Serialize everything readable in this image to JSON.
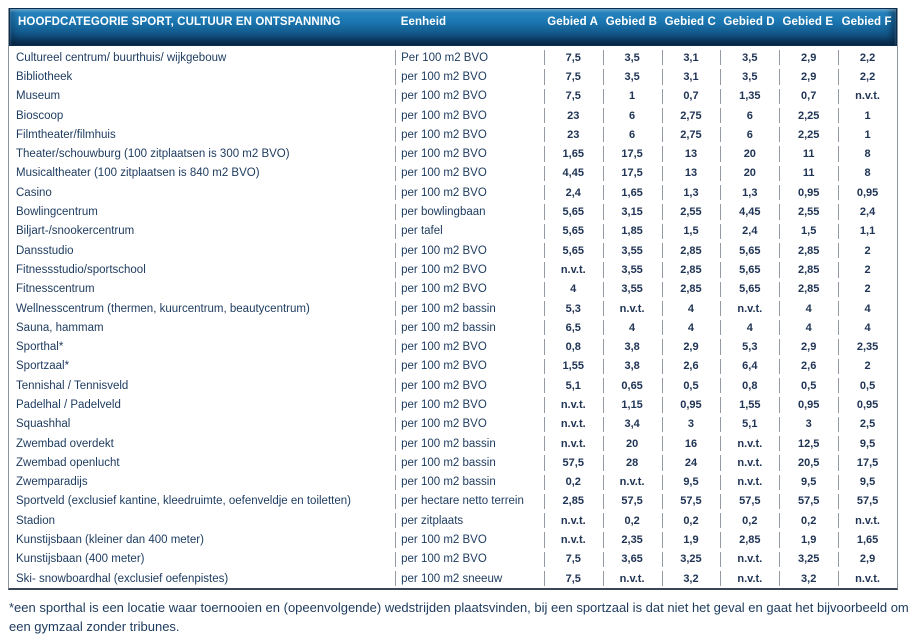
{
  "table": {
    "header": {
      "category": "HOOFDCATEGORIE SPORT, CULTUUR EN ONTSPANNING",
      "unit": "Eenheid",
      "areas": [
        "Gebied A",
        "Gebied B",
        "Gebied C",
        "Gebied D",
        "Gebied E",
        "Gebied F"
      ]
    },
    "rows": [
      {
        "label": "Cultureel centrum/ buurthuis/ wijkgebouw",
        "unit": "Per 100 m2 BVO",
        "values": [
          "7,5",
          "3,5",
          "3,1",
          "3,5",
          "2,9",
          "2,2"
        ]
      },
      {
        "label": "Bibliotheek",
        "unit": "per 100 m2 BVO",
        "values": [
          "7,5",
          "3,5",
          "3,1",
          "3,5",
          "2,9",
          "2,2"
        ]
      },
      {
        "label": "Museum",
        "unit": "per 100 m2 BVO",
        "values": [
          "7,5",
          "1",
          "0,7",
          "1,35",
          "0,7",
          "n.v.t."
        ]
      },
      {
        "label": "Bioscoop",
        "unit": "per 100 m2 BVO",
        "values": [
          "23",
          "6",
          "2,75",
          "6",
          "2,25",
          "1"
        ]
      },
      {
        "label": "Filmtheater/filmhuis",
        "unit": "per 100 m2 BVO",
        "values": [
          "23",
          "6",
          "2,75",
          "6",
          "2,25",
          "1"
        ]
      },
      {
        "label": "Theater/schouwburg (100 zitplaatsen is 300 m2 BVO)",
        "unit": "per 100 m2 BVO",
        "values": [
          "1,65",
          "17,5",
          "13",
          "20",
          "11",
          "8"
        ]
      },
      {
        "label": "Musicaltheater (100 zitplaatsen is 840 m2 BVO)",
        "unit": "per 100 m2 BVO",
        "values": [
          "4,45",
          "17,5",
          "13",
          "20",
          "11",
          "8"
        ]
      },
      {
        "label": "Casino",
        "unit": "per 100 m2 BVO",
        "values": [
          "2,4",
          "1,65",
          "1,3",
          "1,3",
          "0,95",
          "0,95"
        ]
      },
      {
        "label": "Bowlingcentrum",
        "unit": "per bowlingbaan",
        "values": [
          "5,65",
          "3,15",
          "2,55",
          "4,45",
          "2,55",
          "2,4"
        ]
      },
      {
        "label": "Biljart-/snookercentrum",
        "unit": "per tafel",
        "values": [
          "5,65",
          "1,85",
          "1,5",
          "2,4",
          "1,5",
          "1,1"
        ]
      },
      {
        "label": "Dansstudio",
        "unit": "per 100 m2 BVO",
        "values": [
          "5,65",
          "3,55",
          "2,85",
          "5,65",
          "2,85",
          "2"
        ]
      },
      {
        "label": "Fitnessstudio/sportschool",
        "unit": "per 100 m2 BVO",
        "values": [
          "n.v.t.",
          "3,55",
          "2,85",
          "5,65",
          "2,85",
          "2"
        ]
      },
      {
        "label": "Fitnesscentrum",
        "unit": "per 100 m2 BVO",
        "values": [
          "4",
          "3,55",
          "2,85",
          "5,65",
          "2,85",
          "2"
        ]
      },
      {
        "label": "Wellnesscentrum (thermen, kuurcentrum, beautycentrum)",
        "unit": "per 100 m2 bassin",
        "values": [
          "5,3",
          "n.v.t.",
          "4",
          "n.v.t.",
          "4",
          "4"
        ]
      },
      {
        "label": "Sauna, hammam",
        "unit": "per 100 m2 bassin",
        "values": [
          "6,5",
          "4",
          "4",
          "4",
          "4",
          "4"
        ]
      },
      {
        "label": "Sporthal*",
        "unit": "per 100 m2 BVO",
        "values": [
          "0,8",
          "3,8",
          "2,9",
          "5,3",
          "2,9",
          "2,35"
        ]
      },
      {
        "label": "Sportzaal*",
        "unit": "per 100 m2 BVO",
        "values": [
          "1,55",
          "3,8",
          "2,6",
          "6,4",
          "2,6",
          "2"
        ]
      },
      {
        "label": "Tennishal / Tennisveld",
        "unit": "per 100 m2 BVO",
        "values": [
          "5,1",
          "0,65",
          "0,5",
          "0,8",
          "0,5",
          "0,5"
        ]
      },
      {
        "label": "Padelhal / Padelveld",
        "unit": "per 100 m2 BVO",
        "values": [
          "n.v.t.",
          "1,15",
          "0,95",
          "1,55",
          "0,95",
          "0,95"
        ]
      },
      {
        "label": "Squashhal",
        "unit": "per 100 m2 BVO",
        "values": [
          "n.v.t.",
          "3,4",
          "3",
          "5,1",
          "3",
          "2,5"
        ]
      },
      {
        "label": "Zwembad overdekt",
        "unit": "per 100 m2 bassin",
        "values": [
          "n.v.t.",
          "20",
          "16",
          "n.v.t.",
          "12,5",
          "9,5"
        ]
      },
      {
        "label": "Zwembad openlucht",
        "unit": "per 100 m2 bassin",
        "values": [
          "57,5",
          "28",
          "24",
          "n.v.t.",
          "20,5",
          "17,5"
        ]
      },
      {
        "label": "Zwemparadijs",
        "unit": "per 100 m2 bassin",
        "values": [
          "0,2",
          "n.v.t.",
          "9,5",
          "n.v.t.",
          "9,5",
          "9,5"
        ]
      },
      {
        "label": "Sportveld (exclusief kantine, kleedruimte, oefenveldje en toiletten)",
        "unit": "per hectare netto terrein",
        "values": [
          "2,85",
          "57,5",
          "57,5",
          "57,5",
          "57,5",
          "57,5"
        ]
      },
      {
        "label": "Stadion",
        "unit": "per zitplaats",
        "values": [
          "n.v.t.",
          "0,2",
          "0,2",
          "0,2",
          "0,2",
          "n.v.t."
        ]
      },
      {
        "label": "Kunstijsbaan (kleiner dan 400 meter)",
        "unit": "per 100 m2 BVO",
        "values": [
          "n.v.t.",
          "2,35",
          "1,9",
          "2,85",
          "1,9",
          "1,65"
        ]
      },
      {
        "label": "Kunstijsbaan (400 meter)",
        "unit": "per 100 m2 BVO",
        "values": [
          "7,5",
          "3,65",
          "3,25",
          "n.v.t.",
          "3,25",
          "2,9"
        ]
      },
      {
        "label": "Ski- snowboardhal (exclusief oefenpistes)",
        "unit": "per 100 m2 sneeuw",
        "values": [
          "7,5",
          "n.v.t.",
          "3,2",
          "n.v.t.",
          "3,2",
          "n.v.t."
        ]
      }
    ]
  },
  "footnote": "*een sporthal is een locatie waar toernooien en (opeenvolgende) wedstrijden plaatsvinden, bij een sportzaal is dat niet het geval en gaat het bijvoorbeeld om een gymzaal zonder tribunes.",
  "colors": {
    "header_blue_top": "#2a8cc9",
    "header_blue_bottom": "#0d3a61",
    "text_navy": "#1c3a5e",
    "divider_gray": "#949ba3"
  }
}
